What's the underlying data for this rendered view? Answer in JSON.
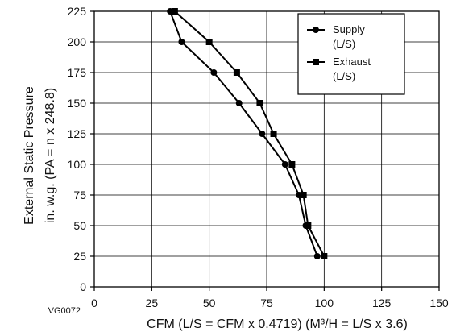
{
  "figure_id": "VG0072",
  "chart_data": {
    "type": "line",
    "xlabel": "CFM (L/S = CFM x 0.4719) (M³/H = L/S x 3.6)",
    "ylabel_line1": "External Static Pressure",
    "ylabel_line2": "in. w.g. (PA = n x 248.8)",
    "xlim": [
      0,
      150
    ],
    "ylim": [
      0,
      225
    ],
    "x_ticks": [
      0,
      25,
      50,
      75,
      100,
      125,
      150
    ],
    "y_ticks": [
      0,
      25,
      50,
      75,
      100,
      125,
      150,
      175,
      200,
      225
    ],
    "grid": true,
    "legend_position": "top-right",
    "series": [
      {
        "name": "Supply",
        "unit": "(L/S)",
        "marker": "circle",
        "points": [
          {
            "x": 33,
            "y": 225
          },
          {
            "x": 38,
            "y": 200
          },
          {
            "x": 52,
            "y": 175
          },
          {
            "x": 63,
            "y": 150
          },
          {
            "x": 73,
            "y": 125
          },
          {
            "x": 83,
            "y": 100
          },
          {
            "x": 89,
            "y": 75
          },
          {
            "x": 92,
            "y": 50
          },
          {
            "x": 97,
            "y": 25
          }
        ]
      },
      {
        "name": "Exhaust",
        "unit": "(L/S)",
        "marker": "square",
        "points": [
          {
            "x": 35,
            "y": 225
          },
          {
            "x": 50,
            "y": 200
          },
          {
            "x": 62,
            "y": 175
          },
          {
            "x": 72,
            "y": 150
          },
          {
            "x": 78,
            "y": 125
          },
          {
            "x": 86,
            "y": 100
          },
          {
            "x": 91,
            "y": 75
          },
          {
            "x": 93,
            "y": 50
          },
          {
            "x": 100,
            "y": 25
          }
        ]
      }
    ]
  }
}
